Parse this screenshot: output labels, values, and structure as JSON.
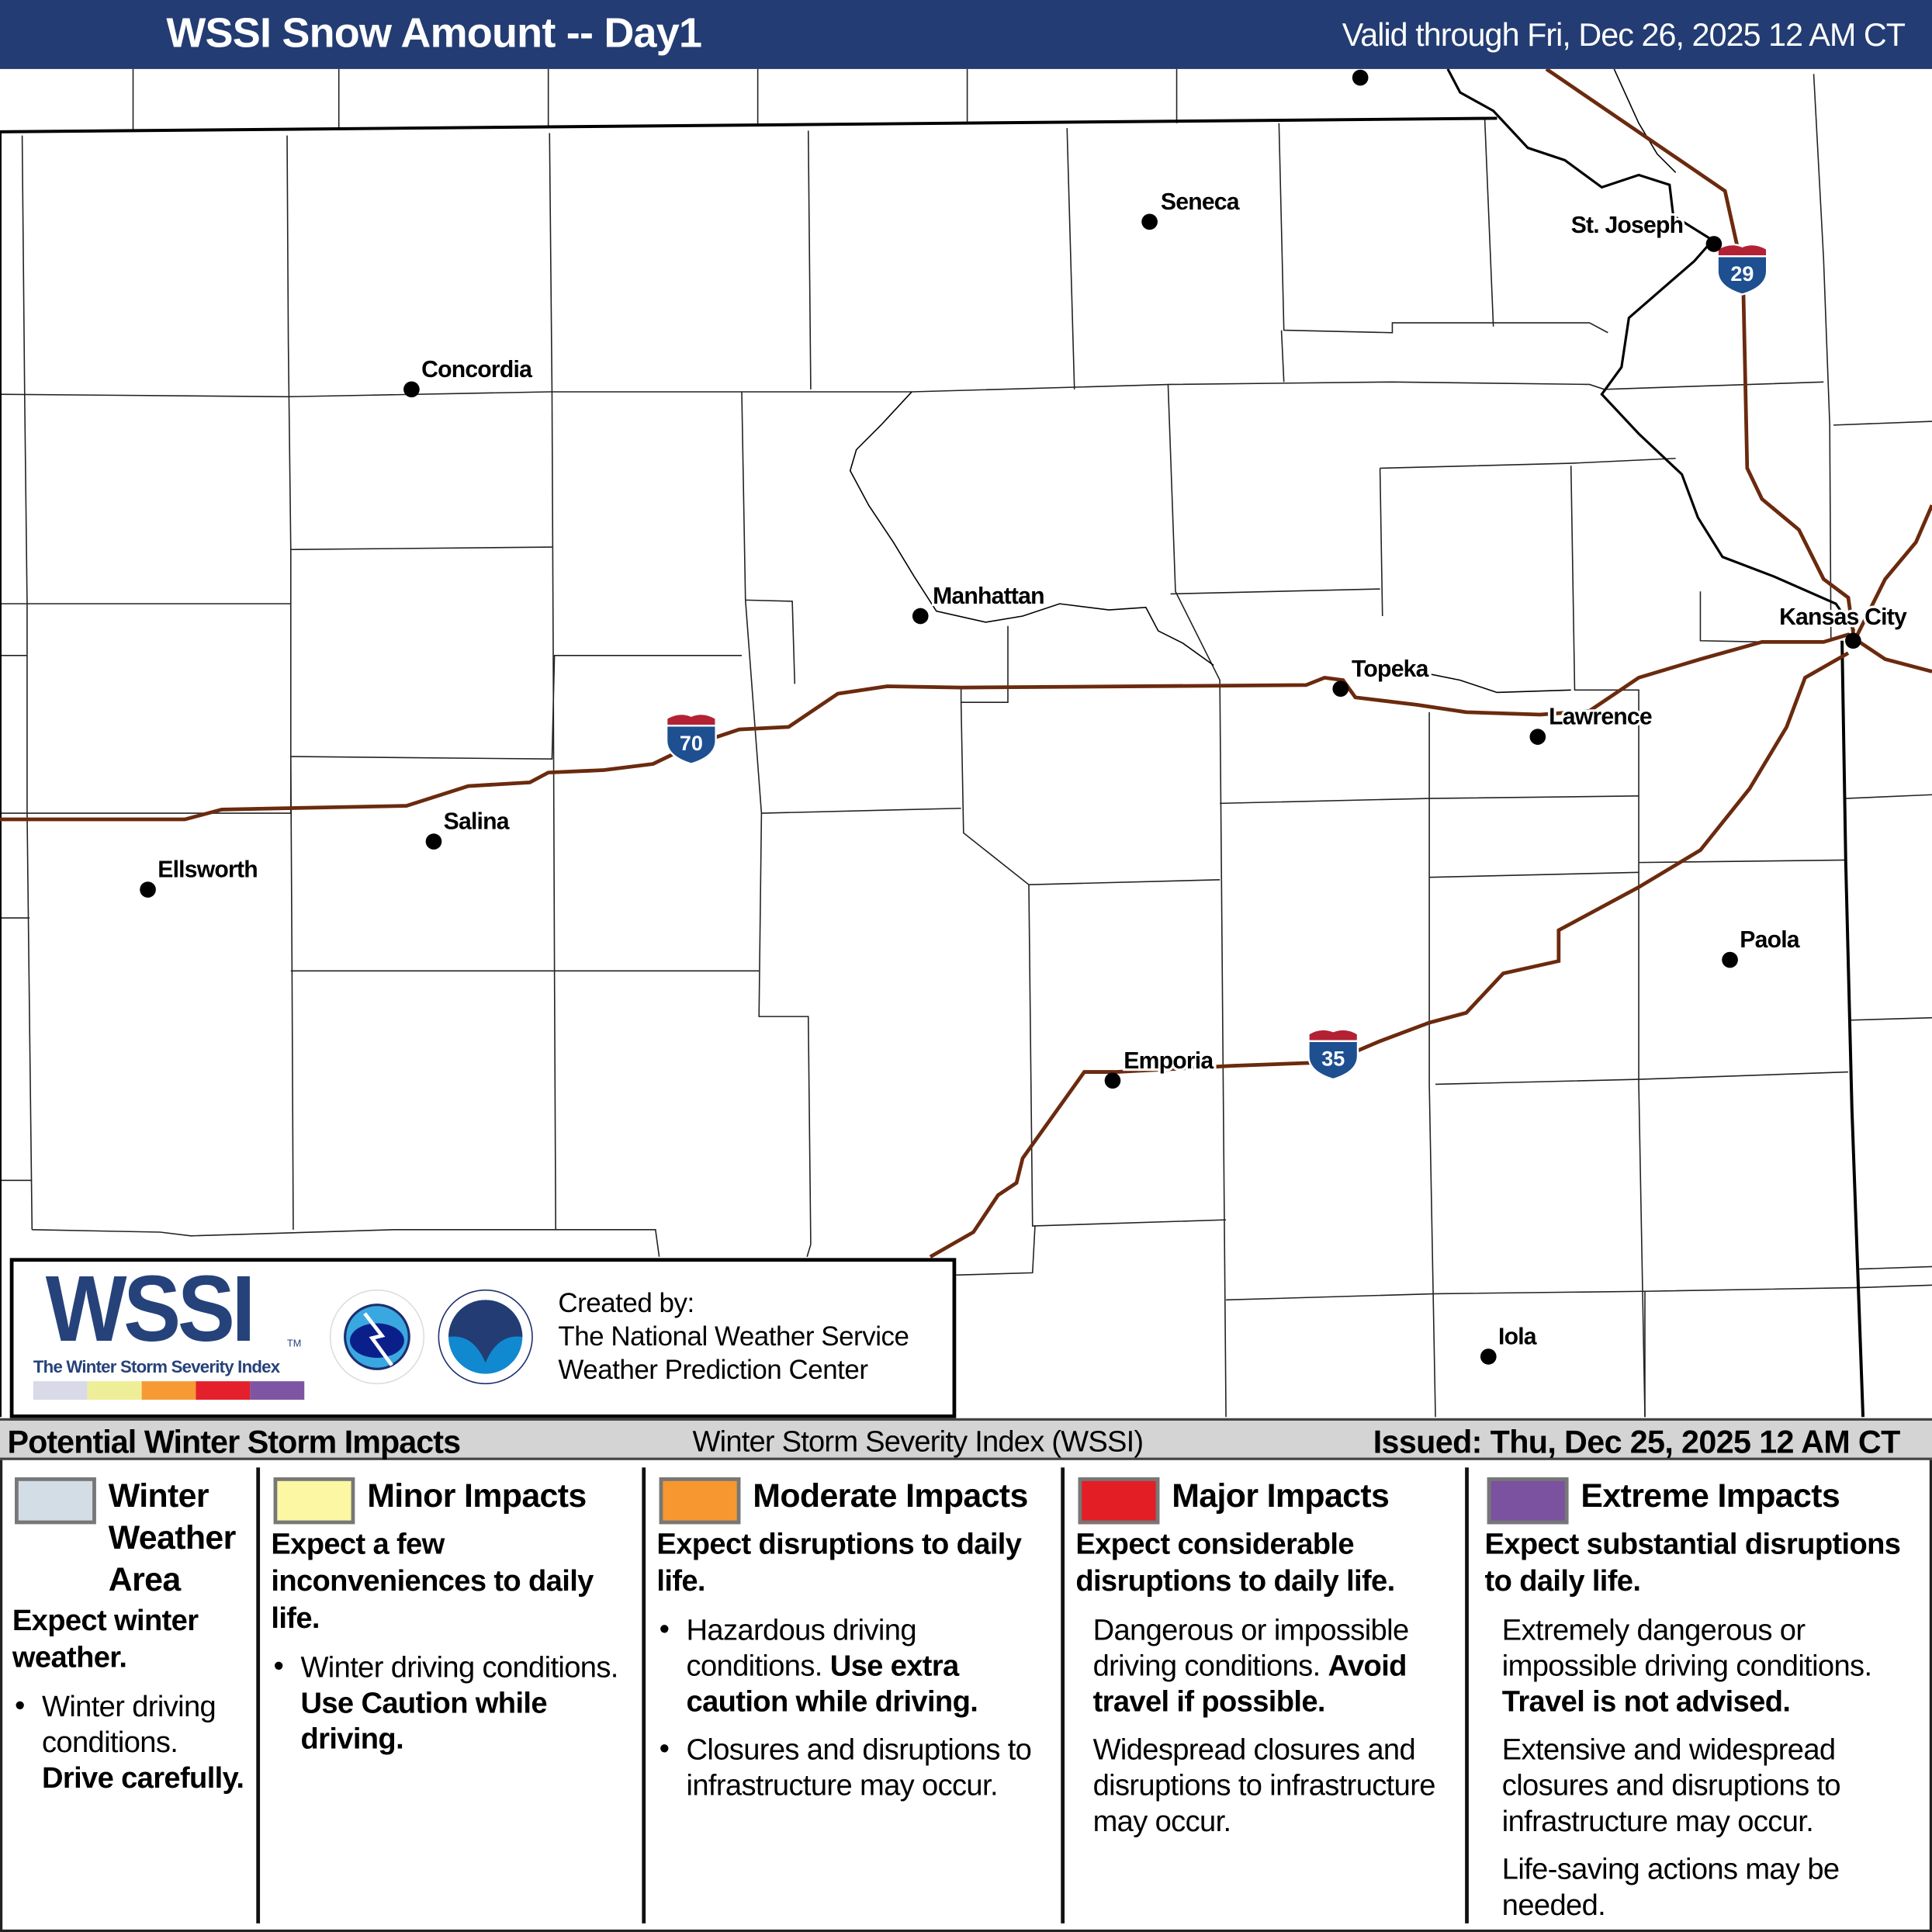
{
  "header": {
    "title": "WSSI Snow Amount -- Day1",
    "valid": "Valid through Fri, Dec 26, 2025 12 AM CT",
    "bg_color": "#233c73"
  },
  "map": {
    "cities": [
      {
        "name": "Seneca"
      },
      {
        "name": "St. Joseph"
      },
      {
        "name": "Concordia"
      },
      {
        "name": "Manhattan"
      },
      {
        "name": "Kansas City"
      },
      {
        "name": "Topeka"
      },
      {
        "name": "Lawrence"
      },
      {
        "name": "Salina"
      },
      {
        "name": "Ellsworth"
      },
      {
        "name": "Paola"
      },
      {
        "name": "Emporia"
      },
      {
        "name": "Iola"
      }
    ],
    "interstates": [
      {
        "number": "70"
      },
      {
        "number": "29"
      },
      {
        "number": "35"
      }
    ],
    "highway_color": "#6b2a0e",
    "shield_colors": {
      "top": "#b22234",
      "body": "#1d4f91"
    }
  },
  "logo": {
    "wssi_text": "WSSI",
    "tm": "TM",
    "wssi_subtitle": "The Winter Storm Severity Index",
    "agency_logos": [
      "NATIONAL WEATHER SERVICE",
      "NOAA"
    ],
    "created_by": "Created by:",
    "org1": "The National Weather Service",
    "org2": "Weather Prediction Center",
    "bar_colors": [
      "#d9d9e8",
      "#eeee98",
      "#f79a36",
      "#e3202b",
      "#7e55a3"
    ]
  },
  "legend_header": {
    "left": "Potential Winter Storm Impacts",
    "middle": "Winter Storm Severity Index (WSSI)",
    "right": "Issued: Thu, Dec 25, 2025 12 AM CT"
  },
  "legend": [
    {
      "title": "Winter Weather Area",
      "color": "#d3dde6",
      "subtitle": "Expect winter weather.",
      "style": "bullet",
      "items": [
        {
          "text": "Winter driving conditions. ",
          "bold": "Drive carefully."
        }
      ]
    },
    {
      "title": "Minor Impacts",
      "color": "#fbf7a3",
      "subtitle": "Expect a few inconveniences to daily life.",
      "style": "bullet",
      "items": [
        {
          "text": "Winter driving conditions. ",
          "bold": "Use Caution while driving."
        }
      ]
    },
    {
      "title": "Moderate Impacts",
      "color": "#f7972f",
      "subtitle": "Expect disruptions to daily life.",
      "style": "bullet",
      "items": [
        {
          "text": "Hazardous driving conditions. ",
          "bold": "Use extra caution while driving."
        },
        {
          "text": "Closures and disruptions to infrastructure may occur.",
          "bold": ""
        }
      ]
    },
    {
      "title": "Major Impacts",
      "color": "#e31e24",
      "subtitle": "Expect considerable disruptions to daily life.",
      "style": "plain",
      "items": [
        {
          "text": "Dangerous or impossible driving conditions. ",
          "bold": "Avoid travel if possible."
        },
        {
          "text": "Widespread closures and disruptions to infrastructure may occur.",
          "bold": ""
        }
      ]
    },
    {
      "title": "Extreme Impacts",
      "color": "#7b52a0",
      "subtitle": "Expect substantial disruptions to daily life.",
      "style": "plain",
      "items": [
        {
          "text": "Extremely dangerous or impossible driving conditions. ",
          "bold": "Travel is not advised."
        },
        {
          "text": "Extensive and widespread closures and disruptions to infrastructure may occur.",
          "bold": ""
        },
        {
          "text": "Life-saving actions may be needed.",
          "bold": ""
        }
      ]
    }
  ]
}
